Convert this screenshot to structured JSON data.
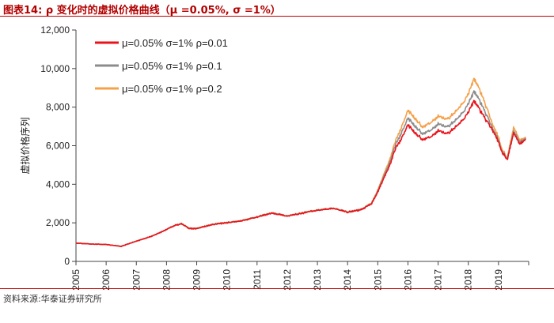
{
  "header": {
    "title": "图表14:  ρ 变化时的虚拟价格曲线（μ =0.05%,  σ =1%）"
  },
  "footer": {
    "source": "资料来源:华泰证券研究所"
  },
  "chart_data": {
    "type": "line",
    "title": "ρ 变化时的虚拟价格曲线（μ =0.05%,  σ =1%）",
    "xlabel": "",
    "ylabel": "虚拟价格序列",
    "xlim": [
      2005,
      2020
    ],
    "ylim": [
      0,
      12000
    ],
    "yticks": [
      "0",
      "2,000",
      "4,000",
      "6,000",
      "8,000",
      "10,000",
      "12,000"
    ],
    "ytick_values": [
      0,
      2000,
      4000,
      6000,
      8000,
      10000,
      12000
    ],
    "xticks": [
      "2005",
      "2006",
      "2007",
      "2008",
      "2009",
      "2010",
      "2011",
      "2012",
      "2013",
      "2014",
      "2015",
      "2016",
      "2017",
      "2018",
      "2019"
    ],
    "xtick_values": [
      2005,
      2006,
      2007,
      2008,
      2009,
      2010,
      2011,
      2012,
      2013,
      2014,
      2015,
      2016,
      2017,
      2018,
      2019
    ],
    "grid": false,
    "legend_position": "top-left",
    "x": [
      2005.0,
      2005.5,
      2006.0,
      2006.5,
      2007.0,
      2007.5,
      2008.0,
      2008.25,
      2008.5,
      2008.75,
      2009.0,
      2009.5,
      2010.0,
      2010.5,
      2011.0,
      2011.5,
      2012.0,
      2012.5,
      2013.0,
      2013.5,
      2014.0,
      2014.5,
      2014.8,
      2015.0,
      2015.2,
      2015.4,
      2015.6,
      2015.8,
      2016.0,
      2016.2,
      2016.5,
      2016.8,
      2017.0,
      2017.3,
      2017.6,
      2017.9,
      2018.0,
      2018.1,
      2018.2,
      2018.4,
      2018.6,
      2018.8,
      2019.0,
      2019.1,
      2019.3,
      2019.5,
      2019.7,
      2019.9
    ],
    "series": [
      {
        "name": "μ=0.05% σ=1% ρ=0.01",
        "color": "#e8141b",
        "values": [
          950,
          900,
          880,
          780,
          1050,
          1300,
          1650,
          1850,
          1950,
          1700,
          1700,
          1900,
          2000,
          2100,
          2300,
          2500,
          2350,
          2500,
          2650,
          2750,
          2550,
          2700,
          3000,
          3600,
          4300,
          5000,
          5900,
          6400,
          7100,
          6700,
          6300,
          6500,
          6800,
          6600,
          7000,
          7500,
          7700,
          8100,
          8300,
          7800,
          7300,
          6800,
          6200,
          5700,
          5300,
          6700,
          6100,
          6300
        ]
      },
      {
        "name": "μ=0.05% σ=1% ρ=0.1",
        "color": "#8c8c8c",
        "values": [
          950,
          900,
          880,
          780,
          1050,
          1300,
          1650,
          1860,
          1960,
          1710,
          1710,
          1910,
          2010,
          2110,
          2310,
          2510,
          2360,
          2510,
          2660,
          2760,
          2560,
          2710,
          3020,
          3650,
          4400,
          5150,
          6100,
          6700,
          7450,
          7050,
          6600,
          6850,
          7150,
          6950,
          7350,
          7900,
          8150,
          8550,
          8800,
          8250,
          7600,
          6900,
          6300,
          5750,
          5350,
          6800,
          6200,
          6350
        ]
      },
      {
        "name": "μ=0.05% σ=1% ρ=0.2",
        "color": "#f5a04a",
        "values": [
          950,
          900,
          880,
          780,
          1050,
          1300,
          1650,
          1870,
          1970,
          1720,
          1720,
          1920,
          2020,
          2120,
          2320,
          2520,
          2370,
          2520,
          2670,
          2770,
          2570,
          2720,
          3050,
          3700,
          4500,
          5300,
          6300,
          7000,
          7850,
          7450,
          6950,
          7250,
          7550,
          7350,
          7800,
          8400,
          8650,
          9150,
          9450,
          8800,
          8000,
          7100,
          6450,
          5850,
          5400,
          7000,
          6300,
          6400
        ]
      }
    ]
  }
}
